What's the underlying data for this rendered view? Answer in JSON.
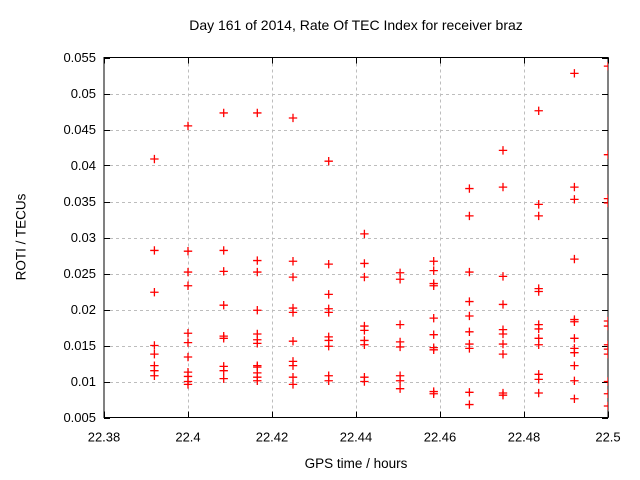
{
  "chart_data": {
    "type": "scatter",
    "title": "Day 161 of 2014, Rate Of TEC Index for receiver braz",
    "xlabel": "GPS time / hours",
    "ylabel": "ROTI / TECUs",
    "xlim": [
      22.38,
      22.5
    ],
    "ylim": [
      0.005,
      0.055
    ],
    "xticks": [
      {
        "value": 22.38,
        "label": "22.38"
      },
      {
        "value": 22.4,
        "label": "22.4"
      },
      {
        "value": 22.42,
        "label": "22.42"
      },
      {
        "value": 22.44,
        "label": "22.44"
      },
      {
        "value": 22.46,
        "label": "22.46"
      },
      {
        "value": 22.48,
        "label": "22.48"
      },
      {
        "value": 22.5,
        "label": "22.5"
      }
    ],
    "yticks": [
      {
        "value": 0.005,
        "label": "0.005"
      },
      {
        "value": 0.01,
        "label": "0.01"
      },
      {
        "value": 0.015,
        "label": "0.015"
      },
      {
        "value": 0.02,
        "label": "0.02"
      },
      {
        "value": 0.025,
        "label": "0.025"
      },
      {
        "value": 0.03,
        "label": "0.03"
      },
      {
        "value": 0.035,
        "label": "0.035"
      },
      {
        "value": 0.04,
        "label": "0.04"
      },
      {
        "value": 0.045,
        "label": "0.045"
      },
      {
        "value": 0.05,
        "label": "0.05"
      },
      {
        "value": 0.055,
        "label": "0.055"
      }
    ],
    "grid": true,
    "legend": false,
    "marker_shape": "plus",
    "marker_color": "#ff0000",
    "grid_color": "#bdbdbd",
    "axis_color": "#000000",
    "background_color": "#ffffff",
    "series": [
      {
        "name": "ROTI",
        "points": [
          [
            22.392,
            0.0409
          ],
          [
            22.392,
            0.0282
          ],
          [
            22.392,
            0.0224
          ],
          [
            22.392,
            0.015
          ],
          [
            22.392,
            0.0138
          ],
          [
            22.392,
            0.0122
          ],
          [
            22.392,
            0.0115
          ],
          [
            22.392,
            0.0108
          ],
          [
            22.4,
            0.0455
          ],
          [
            22.4,
            0.0281
          ],
          [
            22.4,
            0.0252
          ],
          [
            22.4,
            0.0233
          ],
          [
            22.4,
            0.0167
          ],
          [
            22.4,
            0.0154
          ],
          [
            22.4,
            0.0134
          ],
          [
            22.4,
            0.0113
          ],
          [
            22.4,
            0.0107
          ],
          [
            22.4,
            0.01
          ],
          [
            22.4,
            0.0096
          ],
          [
            22.4085,
            0.0473
          ],
          [
            22.4085,
            0.0282
          ],
          [
            22.4085,
            0.0253
          ],
          [
            22.4085,
            0.0206
          ],
          [
            22.4085,
            0.0163
          ],
          [
            22.4085,
            0.016
          ],
          [
            22.4085,
            0.0121
          ],
          [
            22.4085,
            0.0115
          ],
          [
            22.4085,
            0.0104
          ],
          [
            22.4165,
            0.0473
          ],
          [
            22.4165,
            0.0268
          ],
          [
            22.4165,
            0.0252
          ],
          [
            22.4165,
            0.0199
          ],
          [
            22.4165,
            0.0166
          ],
          [
            22.4165,
            0.0158
          ],
          [
            22.4165,
            0.0153
          ],
          [
            22.4165,
            0.0122
          ],
          [
            22.4165,
            0.012
          ],
          [
            22.4165,
            0.0112
          ],
          [
            22.4165,
            0.0106
          ],
          [
            22.4165,
            0.0101
          ],
          [
            22.425,
            0.0466
          ],
          [
            22.425,
            0.0267
          ],
          [
            22.425,
            0.0245
          ],
          [
            22.425,
            0.0202
          ],
          [
            22.425,
            0.0196
          ],
          [
            22.425,
            0.0156
          ],
          [
            22.425,
            0.0128
          ],
          [
            22.425,
            0.0122
          ],
          [
            22.425,
            0.0106
          ],
          [
            22.425,
            0.0096
          ],
          [
            22.4335,
            0.0406
          ],
          [
            22.4335,
            0.0263
          ],
          [
            22.4335,
            0.0221
          ],
          [
            22.4335,
            0.0201
          ],
          [
            22.4335,
            0.0196
          ],
          [
            22.4335,
            0.0162
          ],
          [
            22.4335,
            0.0157
          ],
          [
            22.4335,
            0.0149
          ],
          [
            22.4335,
            0.0108
          ],
          [
            22.4335,
            0.0101
          ],
          [
            22.442,
            0.0305
          ],
          [
            22.442,
            0.0264
          ],
          [
            22.442,
            0.0245
          ],
          [
            22.442,
            0.0177
          ],
          [
            22.442,
            0.0171
          ],
          [
            22.442,
            0.0157
          ],
          [
            22.442,
            0.0151
          ],
          [
            22.442,
            0.0106
          ],
          [
            22.442,
            0.01
          ],
          [
            22.4505,
            0.0251
          ],
          [
            22.4505,
            0.0242
          ],
          [
            22.4505,
            0.0179
          ],
          [
            22.4505,
            0.0155
          ],
          [
            22.4505,
            0.0148
          ],
          [
            22.4505,
            0.0108
          ],
          [
            22.4505,
            0.0101
          ],
          [
            22.4505,
            0.009
          ],
          [
            22.4585,
            0.0267
          ],
          [
            22.4585,
            0.0254
          ],
          [
            22.4585,
            0.0236
          ],
          [
            22.4585,
            0.0233
          ],
          [
            22.4585,
            0.0188
          ],
          [
            22.4585,
            0.0165
          ],
          [
            22.4585,
            0.0147
          ],
          [
            22.4585,
            0.0144
          ],
          [
            22.4585,
            0.0086
          ],
          [
            22.4585,
            0.0083
          ],
          [
            22.467,
            0.0368
          ],
          [
            22.467,
            0.033
          ],
          [
            22.467,
            0.0252
          ],
          [
            22.467,
            0.0211
          ],
          [
            22.467,
            0.0191
          ],
          [
            22.467,
            0.0169
          ],
          [
            22.467,
            0.0152
          ],
          [
            22.467,
            0.0146
          ],
          [
            22.467,
            0.0085
          ],
          [
            22.467,
            0.0068
          ],
          [
            22.475,
            0.0421
          ],
          [
            22.475,
            0.037
          ],
          [
            22.475,
            0.0246
          ],
          [
            22.475,
            0.0207
          ],
          [
            22.475,
            0.0172
          ],
          [
            22.475,
            0.0166
          ],
          [
            22.475,
            0.0152
          ],
          [
            22.475,
            0.0138
          ],
          [
            22.475,
            0.0084
          ],
          [
            22.475,
            0.0081
          ],
          [
            22.4835,
            0.0476
          ],
          [
            22.4835,
            0.0346
          ],
          [
            22.4835,
            0.033
          ],
          [
            22.4835,
            0.0229
          ],
          [
            22.4835,
            0.0225
          ],
          [
            22.4835,
            0.0179
          ],
          [
            22.4835,
            0.0173
          ],
          [
            22.4835,
            0.016
          ],
          [
            22.4835,
            0.0151
          ],
          [
            22.4835,
            0.011
          ],
          [
            22.4835,
            0.0103
          ],
          [
            22.4835,
            0.0084
          ],
          [
            22.492,
            0.0528
          ],
          [
            22.492,
            0.037
          ],
          [
            22.492,
            0.0353
          ],
          [
            22.492,
            0.027
          ],
          [
            22.492,
            0.0186
          ],
          [
            22.492,
            0.0183
          ],
          [
            22.492,
            0.016
          ],
          [
            22.492,
            0.0146
          ],
          [
            22.492,
            0.014
          ],
          [
            22.492,
            0.0122
          ],
          [
            22.492,
            0.0101
          ],
          [
            22.492,
            0.0076
          ],
          [
            22.5,
            0.0538
          ],
          [
            22.5,
            0.0415
          ],
          [
            22.5,
            0.0354
          ],
          [
            22.5,
            0.0348
          ],
          [
            22.5,
            0.0184
          ],
          [
            22.5,
            0.0177
          ],
          [
            22.5,
            0.0151
          ],
          [
            22.5,
            0.0145
          ],
          [
            22.5,
            0.0138
          ],
          [
            22.5,
            0.01
          ],
          [
            22.5,
            0.0083
          ],
          [
            22.5,
            0.0066
          ]
        ]
      }
    ]
  }
}
